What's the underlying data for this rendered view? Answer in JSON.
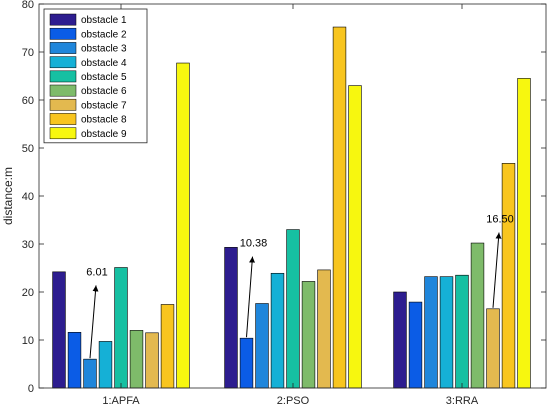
{
  "chart_data": {
    "type": "bar",
    "xlabel": "",
    "ylabel": "distance:m",
    "ylim": [
      0,
      80
    ],
    "yticks": [
      0,
      10,
      20,
      30,
      40,
      50,
      60,
      70,
      80
    ],
    "grid": false,
    "legend_position": "top-left",
    "categories": [
      "1:APFA",
      "2:PSO",
      "3:RRA"
    ],
    "series": [
      {
        "name": "obstacle 1",
        "color": "#2d1d8f",
        "values": [
          24.2,
          29.3,
          20.0
        ]
      },
      {
        "name": "obstacle 2",
        "color": "#0b5ce6",
        "values": [
          11.6,
          10.38,
          17.9
        ]
      },
      {
        "name": "obstacle 3",
        "color": "#1f86db",
        "values": [
          6.01,
          17.6,
          23.2
        ]
      },
      {
        "name": "obstacle 4",
        "color": "#15b0d6",
        "values": [
          9.7,
          23.9,
          23.2
        ]
      },
      {
        "name": "obstacle 5",
        "color": "#16c0a2",
        "values": [
          25.1,
          33.0,
          23.5
        ]
      },
      {
        "name": "obstacle 6",
        "color": "#7ebb6a",
        "values": [
          12.0,
          22.2,
          30.2
        ]
      },
      {
        "name": "obstacle 7",
        "color": "#e3b94f",
        "values": [
          11.5,
          24.6,
          16.5
        ]
      },
      {
        "name": "obstacle 8",
        "color": "#f8c51f",
        "values": [
          17.4,
          75.2,
          46.8
        ]
      },
      {
        "name": "obstacle 9",
        "color": "#f7f70f",
        "values": [
          67.7,
          63.0,
          64.5
        ]
      }
    ],
    "annotations": [
      {
        "text": "6.01",
        "category": "1:APFA",
        "series": "obstacle 3",
        "value": 6.01,
        "label_y": 22
      },
      {
        "text": "10.38",
        "category": "2:PSO",
        "series": "obstacle 2",
        "value": 10.38,
        "label_y": 28
      },
      {
        "text": "16.50",
        "category": "3:RRA",
        "series": "obstacle 7",
        "value": 16.5,
        "label_y": 33
      }
    ]
  }
}
